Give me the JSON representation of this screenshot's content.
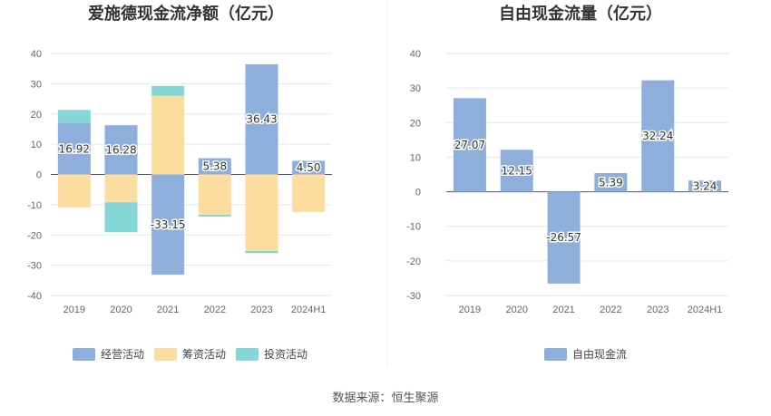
{
  "chart_data": [
    {
      "type": "bar",
      "stacked": true,
      "title": "爱施德现金流净额（亿元）",
      "categories": [
        "2019",
        "2020",
        "2021",
        "2022",
        "2023",
        "2024H1"
      ],
      "ylim": [
        -40,
        40
      ],
      "yticks": [
        40,
        30,
        20,
        10,
        0,
        -10,
        -20,
        -30,
        -40
      ],
      "grid": true,
      "legend_position": "bottom",
      "series": [
        {
          "name": "经营活动",
          "color": "#8eaedc",
          "values": [
            16.92,
            16.28,
            -33.15,
            5.38,
            36.43,
            4.5
          ],
          "labels": [
            "16.92",
            "16.28",
            "-33.15",
            "5.38",
            "36.43",
            "4.50"
          ]
        },
        {
          "name": "筹资活动",
          "color": "#fddc9f",
          "values": [
            -10.9,
            -9.2,
            26.0,
            -13.3,
            -25.3,
            -12.4
          ]
        },
        {
          "name": "投资活动",
          "color": "#85d6d6",
          "values": [
            4.4,
            -9.9,
            3.3,
            -0.6,
            -0.7,
            0
          ]
        }
      ]
    },
    {
      "type": "bar",
      "title": "自由现金流量（亿元）",
      "categories": [
        "2019",
        "2020",
        "2021",
        "2022",
        "2023",
        "2024H1"
      ],
      "ylim": [
        -30,
        40
      ],
      "yticks": [
        40,
        30,
        20,
        10,
        0,
        -10,
        -20,
        -30
      ],
      "grid": true,
      "legend_position": "bottom",
      "series": [
        {
          "name": "自由现金流",
          "color": "#8eaedc",
          "values": [
            27.07,
            12.15,
            -26.57,
            5.39,
            32.24,
            3.24
          ],
          "labels": [
            "27.07",
            "12.15",
            "-26.57",
            "5.39",
            "32.24",
            "3.24"
          ]
        }
      ]
    }
  ],
  "footer": {
    "source": "数据来源：恒生聚源"
  }
}
